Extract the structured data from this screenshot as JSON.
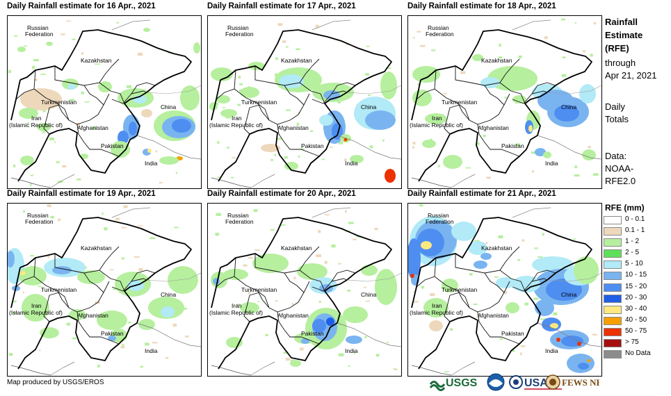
{
  "panels": [
    {
      "title": "Daily Rainfall estimate for 16 Apr., 2021"
    },
    {
      "title": "Daily Rainfall estimate for 17 Apr., 2021"
    },
    {
      "title": "Daily Rainfall estimate for 18 Apr., 2021"
    },
    {
      "title": "Daily Rainfall estimate for 19 Apr., 2021"
    },
    {
      "title": "Daily Rainfall estimate for 20 Apr., 2021"
    },
    {
      "title": "Daily Rainfall estimate for 21 Apr., 2021"
    }
  ],
  "map_labels": {
    "russia_1": "Russian",
    "russia_2": "Federation",
    "kazakhstan": "Kazakhstan",
    "turkmenistan": "Turkmenistan",
    "iran_1": "Iran",
    "iran_2": "(Islamic Republic of)",
    "afghanistan": "Afghanistan",
    "pakistan": "Pakistan",
    "china": "China",
    "india": "India"
  },
  "side_info": {
    "title_lines": [
      "Rainfall",
      "Estimate",
      "(RFE)"
    ],
    "through_lines": [
      "through",
      "Apr 21, 2021"
    ],
    "totals_lines": [
      "Daily",
      "Totals"
    ],
    "data_lines": [
      "Data:",
      "NOAA-",
      "RFE2.0"
    ]
  },
  "legend": {
    "title": "RFE (mm)",
    "items": [
      {
        "label": "0 - 0.1",
        "color": "#ffffff"
      },
      {
        "label": "0.1 - 1",
        "color": "#eed8bc"
      },
      {
        "label": "1 - 2",
        "color": "#b6ef9e"
      },
      {
        "label": "2 - 5",
        "color": "#5ee05a"
      },
      {
        "label": "5 - 10",
        "color": "#b2eaf7"
      },
      {
        "label": "10 - 15",
        "color": "#7ab4f0"
      },
      {
        "label": "15 - 20",
        "color": "#4e8ef0"
      },
      {
        "label": "20 - 30",
        "color": "#1f5fe6"
      },
      {
        "label": "30 - 40",
        "color": "#fde882"
      },
      {
        "label": "40 - 50",
        "color": "#f5a000"
      },
      {
        "label": "50 - 75",
        "color": "#ec3200"
      },
      {
        "label": "> 75",
        "color": "#a50f0f"
      },
      {
        "label": "No Data",
        "color": "#8c8c8c"
      }
    ]
  },
  "footer": {
    "credit": "Map produced by USGS/EROS",
    "logos": [
      "USGS",
      "NOAA",
      "USAID",
      "FEWS NET"
    ]
  }
}
